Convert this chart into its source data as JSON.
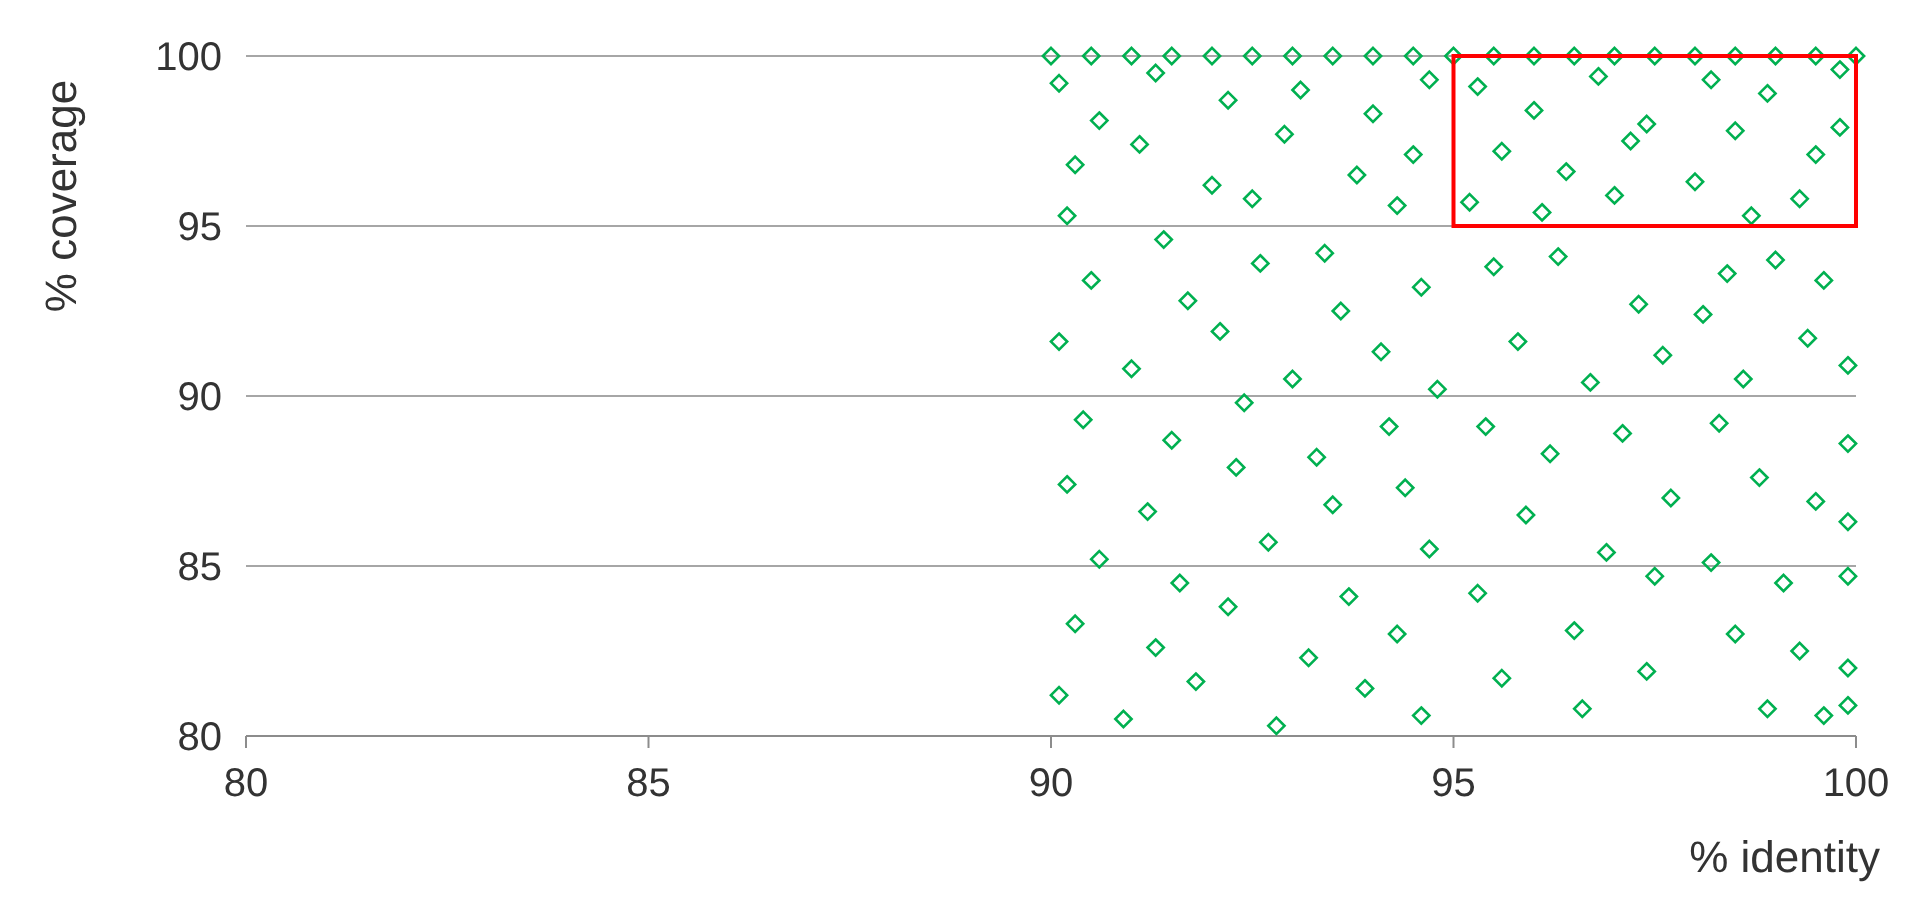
{
  "chart_data": {
    "type": "scatter",
    "xlabel": "% identity",
    "ylabel": "% coverage",
    "xlim": [
      80,
      100
    ],
    "ylim": [
      80,
      100
    ],
    "xticks": [
      80,
      85,
      90,
      95,
      100
    ],
    "yticks": [
      80,
      85,
      90,
      95,
      100
    ],
    "grid": "y",
    "marker": "diamond",
    "series": [
      {
        "color": "#00b050",
        "x": [
          90,
          90.5,
          91,
          91.5,
          92,
          92.5,
          93,
          93.5,
          94,
          94.5,
          95,
          95.5,
          96,
          96.5,
          97,
          97.5,
          98,
          98.5,
          99,
          99.5,
          100,
          90.1,
          90.6,
          91.3,
          92.2,
          93.1,
          94.0,
          94.7,
          90.3,
          91.1,
          92.0,
          92.9,
          93.8,
          94.5,
          90.2,
          91.4,
          92.5,
          93.4,
          94.3,
          90.5,
          91.7,
          92.6,
          93.6,
          94.6,
          90.1,
          91.0,
          92.1,
          93.0,
          94.1,
          94.8,
          90.4,
          91.5,
          92.4,
          93.3,
          94.2,
          90.2,
          91.2,
          92.3,
          93.5,
          94.4,
          90.6,
          91.6,
          92.7,
          93.7,
          94.7,
          90.3,
          91.3,
          92.2,
          93.2,
          94.3,
          90.1,
          90.9,
          91.8,
          92.8,
          93.9,
          94.6,
          95.3,
          96.0,
          96.8,
          97.4,
          95.6,
          96.4,
          97.2,
          95.2,
          96.1,
          97.0,
          95.5,
          96.3,
          97.3,
          95.8,
          96.7,
          97.6,
          95.4,
          96.2,
          97.1,
          95.9,
          96.9,
          97.7,
          95.3,
          96.5,
          97.5,
          95.6,
          96.6,
          97.4,
          98.2,
          98.9,
          99.8,
          99.8,
          98.5,
          99.5,
          98.0,
          99.3,
          98.7,
          99.0,
          98.4,
          99.6,
          98.1,
          99.4,
          99.9,
          98.6,
          98.3,
          99.9,
          98.8,
          99.5,
          99.9,
          98.2,
          99.1,
          99.9,
          98.5,
          99.3,
          99.9,
          98.9,
          99.6,
          99.9
        ],
        "values": [
          100,
          100,
          100,
          100,
          100,
          100,
          100,
          100,
          100,
          100,
          100,
          100,
          100,
          100,
          100,
          100,
          100,
          100,
          100,
          100,
          100,
          99.2,
          98.1,
          99.5,
          98.7,
          99.0,
          98.3,
          99.3,
          96.8,
          97.4,
          96.2,
          97.7,
          96.5,
          97.1,
          95.3,
          94.6,
          95.8,
          94.2,
          95.6,
          93.4,
          92.8,
          93.9,
          92.5,
          93.2,
          91.6,
          90.8,
          91.9,
          90.5,
          91.3,
          90.2,
          89.3,
          88.7,
          89.8,
          88.2,
          89.1,
          87.4,
          86.6,
          87.9,
          86.8,
          87.3,
          85.2,
          84.5,
          85.7,
          84.1,
          85.5,
          83.3,
          82.6,
          83.8,
          82.3,
          83.0,
          81.2,
          80.5,
          81.6,
          80.3,
          81.4,
          80.6,
          99.1,
          98.4,
          99.4,
          98.0,
          97.2,
          96.6,
          97.5,
          95.7,
          95.4,
          95.9,
          93.8,
          94.1,
          92.7,
          91.6,
          90.4,
          91.2,
          89.1,
          88.3,
          88.9,
          86.5,
          85.4,
          87.0,
          84.2,
          83.1,
          84.7,
          81.7,
          80.8,
          81.9,
          99.3,
          98.9,
          99.6,
          97.9,
          97.8,
          97.1,
          96.3,
          95.8,
          95.3,
          94.0,
          93.6,
          93.4,
          92.4,
          91.7,
          90.9,
          90.5,
          89.2,
          88.6,
          87.6,
          86.9,
          86.3,
          85.1,
          84.5,
          84.7,
          83.0,
          82.5,
          82.0,
          80.8,
          80.6,
          80.9
        ]
      }
    ]
  }
}
